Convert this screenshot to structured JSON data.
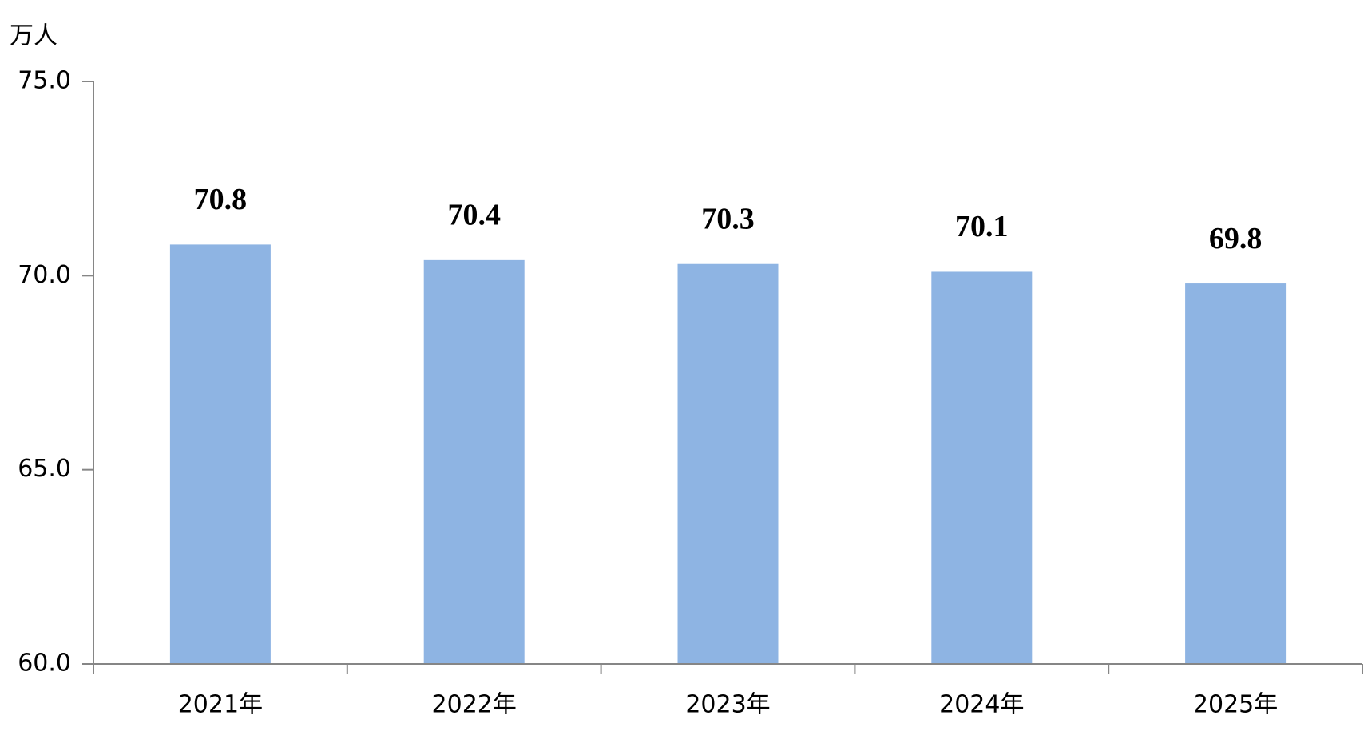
{
  "chart_data": {
    "type": "bar",
    "y_label": "万人",
    "categories": [
      "2021年",
      "2022年",
      "2023年",
      "2024年",
      "2025年"
    ],
    "values": [
      70.8,
      70.4,
      70.3,
      70.1,
      69.8
    ],
    "color": "#8eb4e3",
    "ylim": [
      60,
      75
    ],
    "yticks": [
      {
        "value": 60,
        "label": "60.0"
      },
      {
        "value": 65,
        "label": "65.0"
      },
      {
        "value": 70,
        "label": "70.0"
      },
      {
        "value": 75,
        "label": "75.0"
      }
    ],
    "grid": false
  }
}
